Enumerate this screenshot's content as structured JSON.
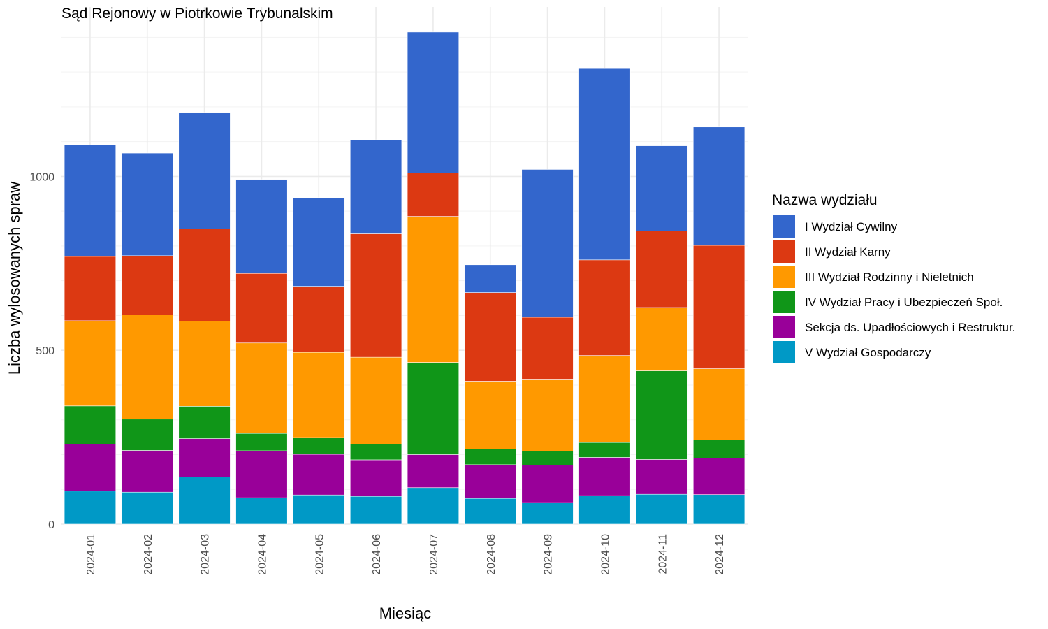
{
  "chart_data": {
    "type": "bar",
    "stacked": true,
    "title": "Sąd Rejonowy w Piotrkowie Trybunalskim",
    "xlabel": "Miesiąc",
    "ylabel": "Liczba wylosowanych spraw",
    "ylim": [
      0,
      1420
    ],
    "yticks": [
      0,
      500,
      1000
    ],
    "grid": true,
    "legend_title": "Nazwa wydziału",
    "legend_position": "right",
    "categories": [
      "2024-01",
      "2024-02",
      "2024-03",
      "2024-04",
      "2024-05",
      "2024-06",
      "2024-07",
      "2024-08",
      "2024-09",
      "2024-10",
      "2024-11",
      "2024-12"
    ],
    "series": [
      {
        "name": "I Wydział Cywilny",
        "color": "#3366cc",
        "values": [
          320,
          295,
          335,
          270,
          255,
          270,
          405,
          80,
          425,
          550,
          245,
          340
        ]
      },
      {
        "name": "II Wydział Karny",
        "color": "#dc3912",
        "values": [
          185,
          170,
          265,
          200,
          190,
          355,
          125,
          255,
          180,
          275,
          220,
          355
        ]
      },
      {
        "name": "III Wydział Rodzinny i Nieletnich",
        "color": "#ff9900",
        "values": [
          245,
          300,
          245,
          260,
          245,
          250,
          420,
          195,
          205,
          250,
          182,
          205
        ]
      },
      {
        "name": "IV Wydział Pracy i Ubezpieczeń Społ.",
        "color": "#109618",
        "values": [
          110,
          90,
          93,
          50,
          48,
          45,
          265,
          45,
          40,
          43,
          255,
          52
        ]
      },
      {
        "name": "Sekcja ds. Upadłościowych i Restruktur.",
        "color": "#990099",
        "values": [
          135,
          120,
          110,
          135,
          117,
          105,
          95,
          97,
          108,
          110,
          100,
          105
        ]
      },
      {
        "name": "V Wydział Gospodarczy",
        "color": "#0099c6",
        "values": [
          95,
          92,
          136,
          76,
          84,
          80,
          105,
          74,
          62,
          82,
          86,
          85
        ]
      }
    ]
  }
}
